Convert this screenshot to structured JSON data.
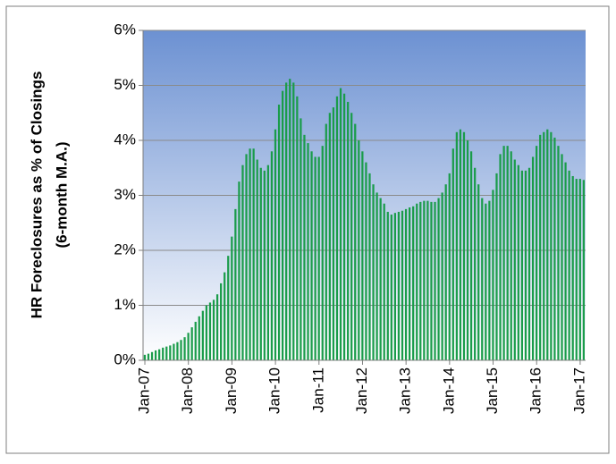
{
  "chart_data": {
    "type": "bar",
    "y_label": [
      "HR Foreclosures as % of Closings",
      "(6-month M.A.)"
    ],
    "categories": [
      "Jan-07",
      null,
      null,
      null,
      null,
      null,
      null,
      null,
      null,
      null,
      null,
      null,
      "Jan-08",
      null,
      null,
      null,
      null,
      null,
      null,
      null,
      null,
      null,
      null,
      null,
      "Jan-09",
      null,
      null,
      null,
      null,
      null,
      null,
      null,
      null,
      null,
      null,
      null,
      "Jan-10",
      null,
      null,
      null,
      null,
      null,
      null,
      null,
      null,
      null,
      null,
      null,
      "Jan-11",
      null,
      null,
      null,
      null,
      null,
      null,
      null,
      null,
      null,
      null,
      null,
      "Jan-12",
      null,
      null,
      null,
      null,
      null,
      null,
      null,
      null,
      null,
      null,
      null,
      "Jan-13",
      null,
      null,
      null,
      null,
      null,
      null,
      null,
      null,
      null,
      null,
      null,
      "Jan-14",
      null,
      null,
      null,
      null,
      null,
      null,
      null,
      null,
      null,
      null,
      null,
      "Jan-15",
      null,
      null,
      null,
      null,
      null,
      null,
      null,
      null,
      null,
      null,
      null,
      "Jan-16",
      null,
      null,
      null,
      null,
      null,
      null,
      null,
      null,
      null,
      null,
      null,
      "Jan-17",
      null
    ],
    "values": [
      0.1,
      0.12,
      0.15,
      0.18,
      0.2,
      0.23,
      0.25,
      0.27,
      0.3,
      0.33,
      0.37,
      0.42,
      0.5,
      0.6,
      0.7,
      0.8,
      0.9,
      1.0,
      1.05,
      1.1,
      1.2,
      1.4,
      1.6,
      1.9,
      2.25,
      2.75,
      3.25,
      3.55,
      3.75,
      3.85,
      3.85,
      3.65,
      3.5,
      3.45,
      3.55,
      3.8,
      4.2,
      4.65,
      4.9,
      5.05,
      5.12,
      5.05,
      4.8,
      4.4,
      4.1,
      3.95,
      3.8,
      3.7,
      3.7,
      3.9,
      4.3,
      4.5,
      4.6,
      4.8,
      4.95,
      4.85,
      4.7,
      4.5,
      4.3,
      4.0,
      3.8,
      3.6,
      3.4,
      3.2,
      3.05,
      2.95,
      2.85,
      2.7,
      2.65,
      2.68,
      2.7,
      2.72,
      2.75,
      2.78,
      2.8,
      2.85,
      2.88,
      2.9,
      2.9,
      2.88,
      2.88,
      2.95,
      3.05,
      3.2,
      3.4,
      3.85,
      4.15,
      4.2,
      4.15,
      4.0,
      3.8,
      3.5,
      3.2,
      2.95,
      2.85,
      2.9,
      3.1,
      3.4,
      3.75,
      3.9,
      3.9,
      3.8,
      3.65,
      3.55,
      3.45,
      3.45,
      3.5,
      3.7,
      3.9,
      4.1,
      4.15,
      4.2,
      4.15,
      4.05,
      3.9,
      3.75,
      3.6,
      3.45,
      3.35,
      3.3,
      3.3,
      3.28
    ],
    "color": "#1a9c4a",
    "ylim": [
      0,
      6
    ],
    "yticks": [
      {
        "value": 0,
        "label": "0%"
      },
      {
        "value": 1,
        "label": "1%"
      },
      {
        "value": 2,
        "label": "2%"
      },
      {
        "value": 3,
        "label": "3%"
      },
      {
        "value": 4,
        "label": "4%"
      },
      {
        "value": 5,
        "label": "5%"
      },
      {
        "value": 6,
        "label": "6%"
      }
    ],
    "grid": true
  }
}
